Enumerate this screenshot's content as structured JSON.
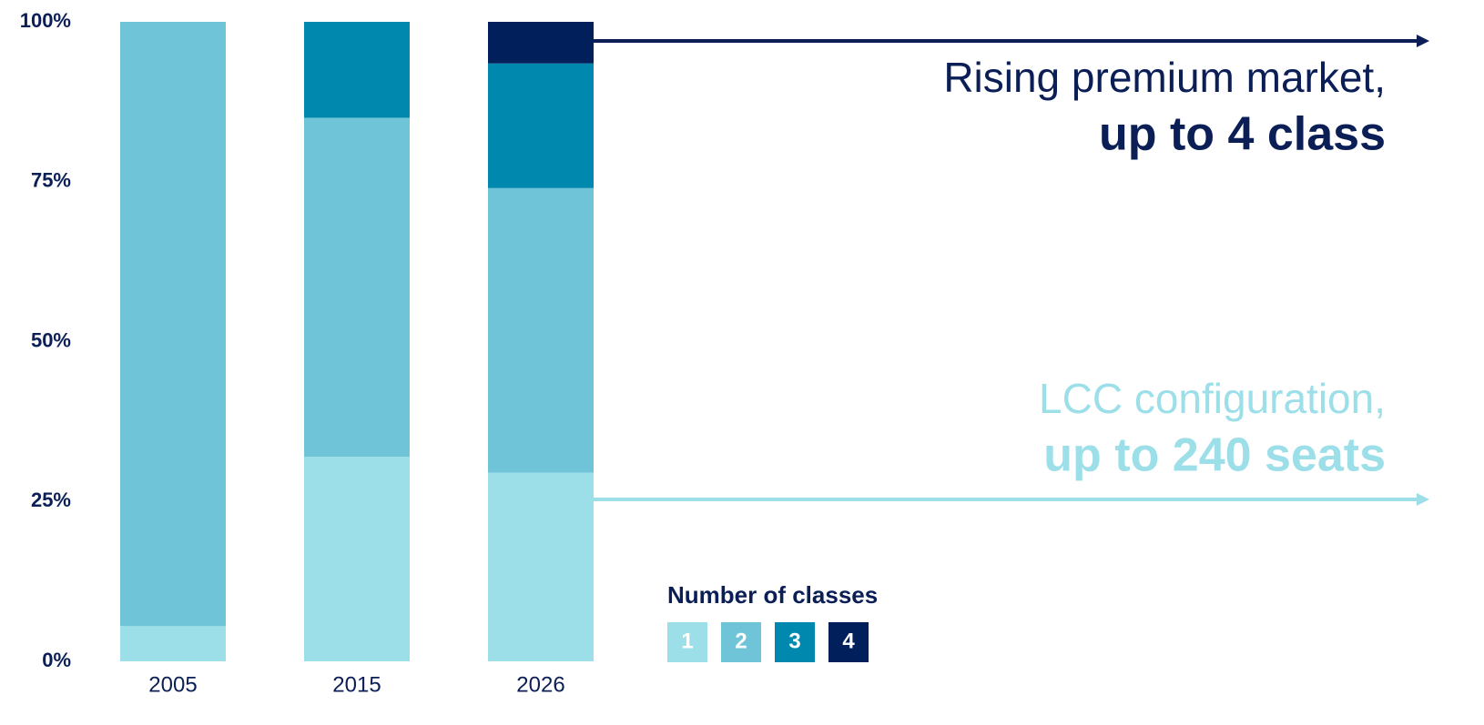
{
  "chart_data": {
    "type": "stacked_bar",
    "categories": [
      "2005",
      "2015",
      "2026"
    ],
    "series": [
      {
        "name": "1",
        "color": "#9ddfe9",
        "values": [
          5.5,
          32,
          29.5
        ]
      },
      {
        "name": "2",
        "color": "#70c4d7",
        "values": [
          94.5,
          53,
          44.5
        ]
      },
      {
        "name": "3",
        "color": "#0088ae",
        "values": [
          null,
          15,
          19.5
        ]
      },
      {
        "name": "4",
        "color": "#001f5b",
        "values": [
          null,
          null,
          6.5
        ]
      }
    ],
    "ylim": [
      0,
      100
    ],
    "yticks": [
      {
        "value": 0,
        "label": "0%"
      },
      {
        "value": 25,
        "label": "25%"
      },
      {
        "value": 50,
        "label": "50%"
      },
      {
        "value": 75,
        "label": "75%"
      },
      {
        "value": 100,
        "label": "100%"
      }
    ],
    "legend_title": "Number of classes",
    "annotations": [
      {
        "line1": "Rising premium market,",
        "line2": "up to 4 class",
        "color": "#0b1f56"
      },
      {
        "line1": "LCC configuration,",
        "line2": "up to 240 seats",
        "color": "#9ddfe9"
      }
    ]
  }
}
